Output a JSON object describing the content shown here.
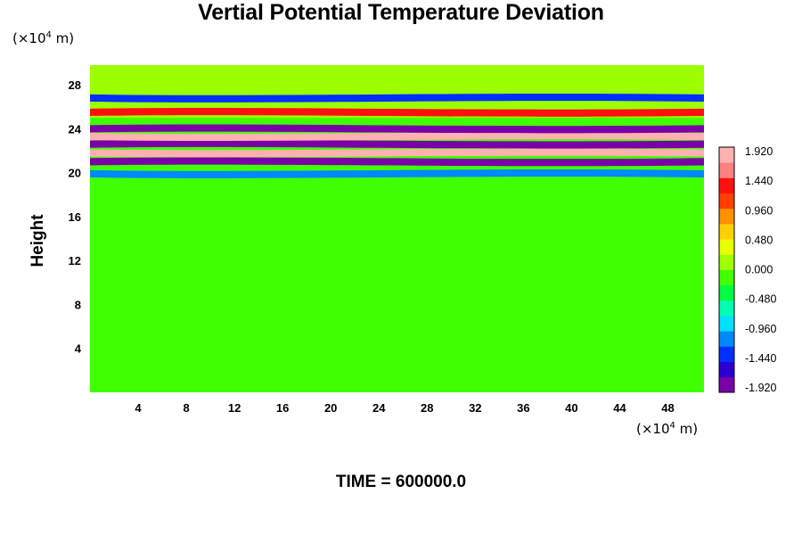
{
  "chart_data": {
    "type": "heatmap",
    "title": "Vertial Potential Temperature Deviation",
    "ylabel": "Height",
    "x_unit": "(×10",
    "y_unit": "(×10",
    "unit_exp": "4",
    "unit_tail": " m)",
    "xlim": [
      0,
      51
    ],
    "ylim": [
      0,
      29.8
    ],
    "xticks": [
      "4",
      "8",
      "12",
      "16",
      "20",
      "24",
      "28",
      "32",
      "36",
      "40",
      "44",
      "48"
    ],
    "yticks": [
      "4",
      "8",
      "12",
      "16",
      "20",
      "24",
      "28"
    ],
    "colorbar": {
      "range": [
        -1.92,
        1.92
      ],
      "ticks": [
        "1.920",
        "1.440",
        "0.960",
        "0.480",
        "0.000",
        "-0.480",
        "-0.960",
        "-1.440",
        "-1.920"
      ],
      "colors": [
        "#7a00a8",
        "#2a00d0",
        "#0030ff",
        "#0088ff",
        "#00e0ff",
        "#00ffb0",
        "#00ff40",
        "#40ff00",
        "#a0ff00",
        "#e8ff00",
        "#ffd000",
        "#ff9000",
        "#ff4000",
        "#ff1010",
        "#ff8080",
        "#ffb0b0"
      ]
    },
    "bands": [
      {
        "y_center": 21.0,
        "value": -1.92
      },
      {
        "y_center": 21.8,
        "value": 1.92
      },
      {
        "y_center": 22.6,
        "value": -1.92
      },
      {
        "y_center": 23.3,
        "value": 1.92
      },
      {
        "y_center": 24.0,
        "value": -1.92
      },
      {
        "y_center": 19.9,
        "value": -1.2
      },
      {
        "y_center": 25.5,
        "value": 1.2
      },
      {
        "y_center": 26.8,
        "value": -1.44
      }
    ],
    "background_value": -0.1,
    "time_label": "TIME = 600000.0"
  }
}
